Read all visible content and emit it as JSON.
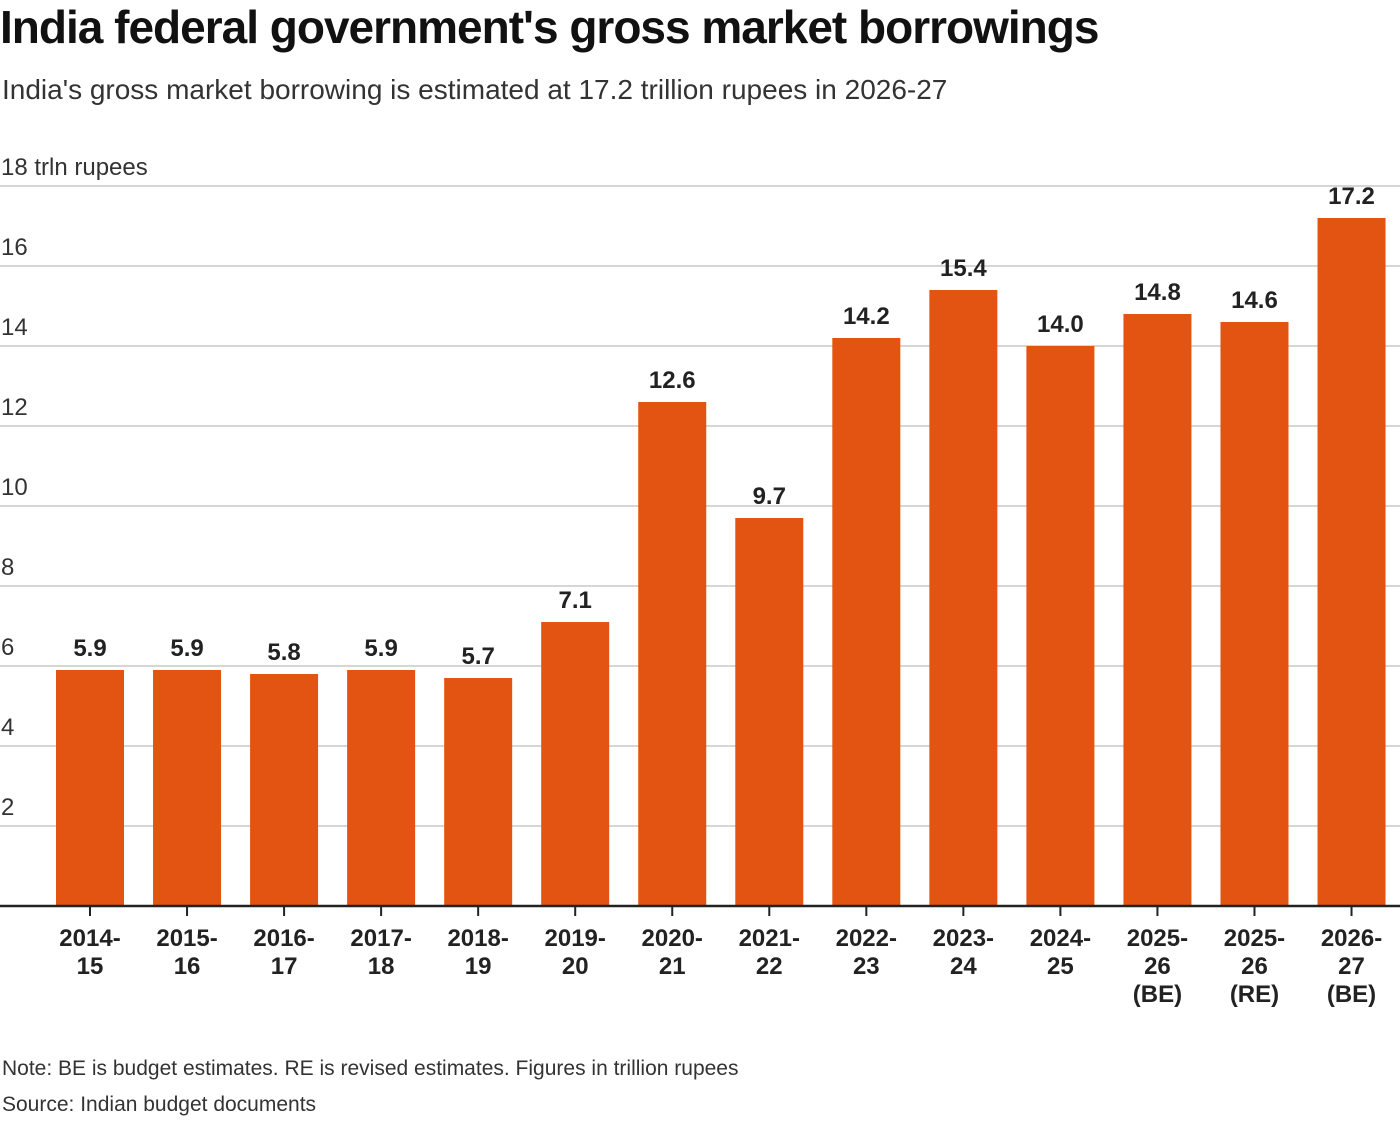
{
  "title": "India federal government's gross market borrowings",
  "subtitle": "India's gross market borrowing is estimated at 17.2 trillion rupees in 2026-27",
  "note": "Note: BE is budget estimates. RE is revised estimates. Figures in trillion rupees",
  "source": "Source: Indian budget documents",
  "chart_data": {
    "type": "bar",
    "title": "India federal government's gross market borrowings",
    "ylabel": "18 trln rupees",
    "ylim": [
      0,
      18
    ],
    "yticks": [
      2,
      4,
      6,
      8,
      10,
      12,
      14,
      16,
      18
    ],
    "ytick_labels": [
      "2",
      "4",
      "6",
      "8",
      "10",
      "12",
      "14",
      "16",
      "18 trln rupees"
    ],
    "grid": true,
    "bar_color": "#e35412",
    "categories": [
      [
        "2014-",
        "15"
      ],
      [
        "2015-",
        "16"
      ],
      [
        "2016-",
        "17"
      ],
      [
        "2017-",
        "18"
      ],
      [
        "2018-",
        "19"
      ],
      [
        "2019-",
        "20"
      ],
      [
        "2020-",
        "21"
      ],
      [
        "2021-",
        "22"
      ],
      [
        "2022-",
        "23"
      ],
      [
        "2023-",
        "24"
      ],
      [
        "2024-",
        "25"
      ],
      [
        "2025-",
        "26",
        "(BE)"
      ],
      [
        "2025-",
        "26",
        "(RE)"
      ],
      [
        "2026-",
        "27",
        "(BE)"
      ]
    ],
    "values": [
      5.9,
      5.9,
      5.8,
      5.9,
      5.7,
      7.1,
      12.6,
      9.7,
      14.2,
      15.4,
      14.0,
      14.8,
      14.6,
      17.2
    ],
    "data_labels": [
      "5.9",
      "5.9",
      "5.8",
      "5.9",
      "5.7",
      "7.1",
      "12.6",
      "9.7",
      "14.2",
      "15.4",
      "14.0",
      "14.8",
      "14.6",
      "17.2"
    ]
  }
}
